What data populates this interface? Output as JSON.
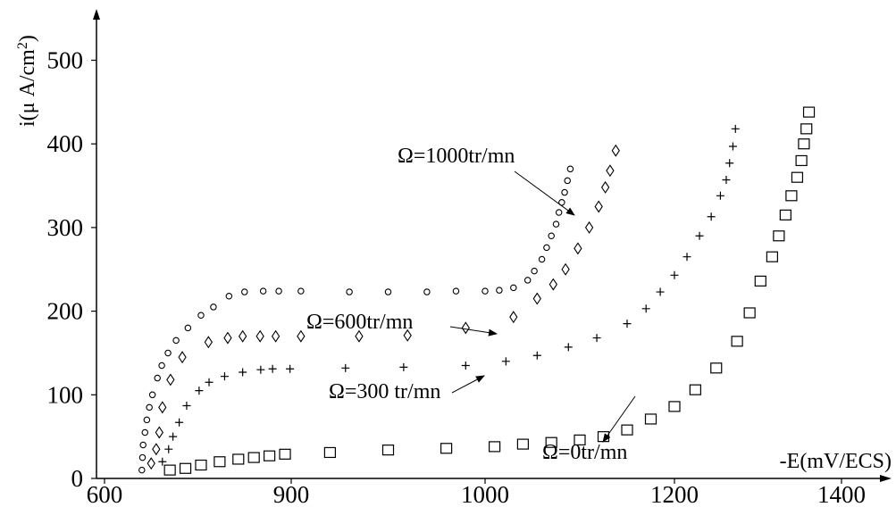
{
  "chart_data": {
    "type": "scatter",
    "title": "",
    "xlabel": "-E(mV/ECS)",
    "ylabel": "i(μA/cm²)",
    "ylabel_parts": {
      "main": "i(μ A/cm",
      "sup": "2",
      "close": ")"
    },
    "xlim": [
      600,
      1450
    ],
    "ylim": [
      0,
      560
    ],
    "x_ticks": [
      600,
      900,
      1000,
      1200,
      1400
    ],
    "x_tick_labels": [
      "600",
      "900",
      "1000",
      "1200",
      "1400"
    ],
    "y_ticks": [
      0,
      100,
      200,
      300,
      400,
      500
    ],
    "y_tick_labels": [
      "0",
      "100",
      "200",
      "300",
      "400",
      "500"
    ],
    "grid": false,
    "legend": "none",
    "series": [
      {
        "name": "Ω=1000tr/mn",
        "marker": "circle",
        "points": [
          [
            660,
            10
          ],
          [
            661,
            25
          ],
          [
            662,
            40
          ],
          [
            665,
            55
          ],
          [
            668,
            70
          ],
          [
            672,
            85
          ],
          [
            677,
            100
          ],
          [
            685,
            120
          ],
          [
            692,
            135
          ],
          [
            702,
            150
          ],
          [
            715,
            165
          ],
          [
            734,
            180
          ],
          [
            755,
            195
          ],
          [
            775,
            205
          ],
          [
            800,
            218
          ],
          [
            825,
            223
          ],
          [
            855,
            224
          ],
          [
            880,
            224
          ],
          [
            905,
            224
          ],
          [
            930,
            223
          ],
          [
            950,
            223
          ],
          [
            970,
            223
          ],
          [
            985,
            224
          ],
          [
            1000,
            224
          ],
          [
            1015,
            225
          ],
          [
            1030,
            228
          ],
          [
            1045,
            237
          ],
          [
            1052,
            248
          ],
          [
            1060,
            262
          ],
          [
            1065,
            276
          ],
          [
            1070,
            290
          ],
          [
            1075,
            304
          ],
          [
            1078,
            318
          ],
          [
            1081,
            330
          ],
          [
            1084,
            342
          ],
          [
            1087,
            356
          ],
          [
            1090,
            370
          ]
        ]
      },
      {
        "name": "Ω=600tr/mn",
        "marker": "diamond",
        "points": [
          [
            675,
            18
          ],
          [
            683,
            35
          ],
          [
            688,
            55
          ],
          [
            693,
            85
          ],
          [
            706,
            118
          ],
          [
            725,
            145
          ],
          [
            767,
            163
          ],
          [
            798,
            168
          ],
          [
            822,
            170
          ],
          [
            850,
            170
          ],
          [
            875,
            170
          ],
          [
            905,
            170
          ],
          [
            935,
            170
          ],
          [
            960,
            171
          ],
          [
            990,
            180
          ],
          [
            1030,
            193
          ],
          [
            1055,
            215
          ],
          [
            1072,
            232
          ],
          [
            1085,
            250
          ],
          [
            1098,
            275
          ],
          [
            1110,
            300
          ],
          [
            1120,
            325
          ],
          [
            1127,
            348
          ],
          [
            1132,
            368
          ],
          [
            1138,
            392
          ]
        ]
      },
      {
        "name": "Ω=300 tr/mn",
        "marker": "plus",
        "points": [
          [
            693,
            20
          ],
          [
            703,
            35
          ],
          [
            710,
            50
          ],
          [
            720,
            67
          ],
          [
            732,
            87
          ],
          [
            752,
            105
          ],
          [
            768,
            115
          ],
          [
            793,
            122
          ],
          [
            822,
            127
          ],
          [
            851,
            130
          ],
          [
            870,
            131
          ],
          [
            898,
            131
          ],
          [
            928,
            132
          ],
          [
            958,
            133
          ],
          [
            990,
            135
          ],
          [
            1022,
            140
          ],
          [
            1055,
            147
          ],
          [
            1088,
            157
          ],
          [
            1118,
            168
          ],
          [
            1150,
            185
          ],
          [
            1170,
            203
          ],
          [
            1185,
            223
          ],
          [
            1200,
            243
          ],
          [
            1215,
            265
          ],
          [
            1230,
            290
          ],
          [
            1244,
            313
          ],
          [
            1255,
            338
          ],
          [
            1262,
            357
          ],
          [
            1266,
            377
          ],
          [
            1270,
            397
          ],
          [
            1273,
            418
          ]
        ]
      },
      {
        "name": "Ω=0tr/mn",
        "marker": "square",
        "points": [
          [
            705,
            10
          ],
          [
            730,
            12
          ],
          [
            755,
            16
          ],
          [
            785,
            20
          ],
          [
            815,
            23
          ],
          [
            840,
            25
          ],
          [
            865,
            27
          ],
          [
            890,
            29
          ],
          [
            920,
            31
          ],
          [
            950,
            34
          ],
          [
            980,
            36
          ],
          [
            1010,
            38
          ],
          [
            1040,
            41
          ],
          [
            1070,
            43
          ],
          [
            1100,
            46
          ],
          [
            1125,
            50
          ],
          [
            1150,
            58
          ],
          [
            1175,
            71
          ],
          [
            1200,
            86
          ],
          [
            1225,
            106
          ],
          [
            1250,
            132
          ],
          [
            1275,
            164
          ],
          [
            1290,
            198
          ],
          [
            1303,
            236
          ],
          [
            1317,
            265
          ],
          [
            1325,
            290
          ],
          [
            1333,
            315
          ],
          [
            1340,
            338
          ],
          [
            1347,
            360
          ],
          [
            1352,
            380
          ],
          [
            1355,
            400
          ],
          [
            1358,
            418
          ],
          [
            1361,
            438
          ]
        ]
      }
    ],
    "annotations": [
      {
        "text": "Ω=1000tr/mn",
        "points_to": [
          1078,
          330
        ]
      },
      {
        "text": "Ω=600tr/mn",
        "points_to": [
          988,
          180
        ]
      },
      {
        "text": "Ω=300 tr/mn",
        "points_to": [
          985,
          135
        ]
      },
      {
        "text": "Ω=0tr/mn",
        "points_to": [
          1220,
          103
        ]
      }
    ]
  }
}
